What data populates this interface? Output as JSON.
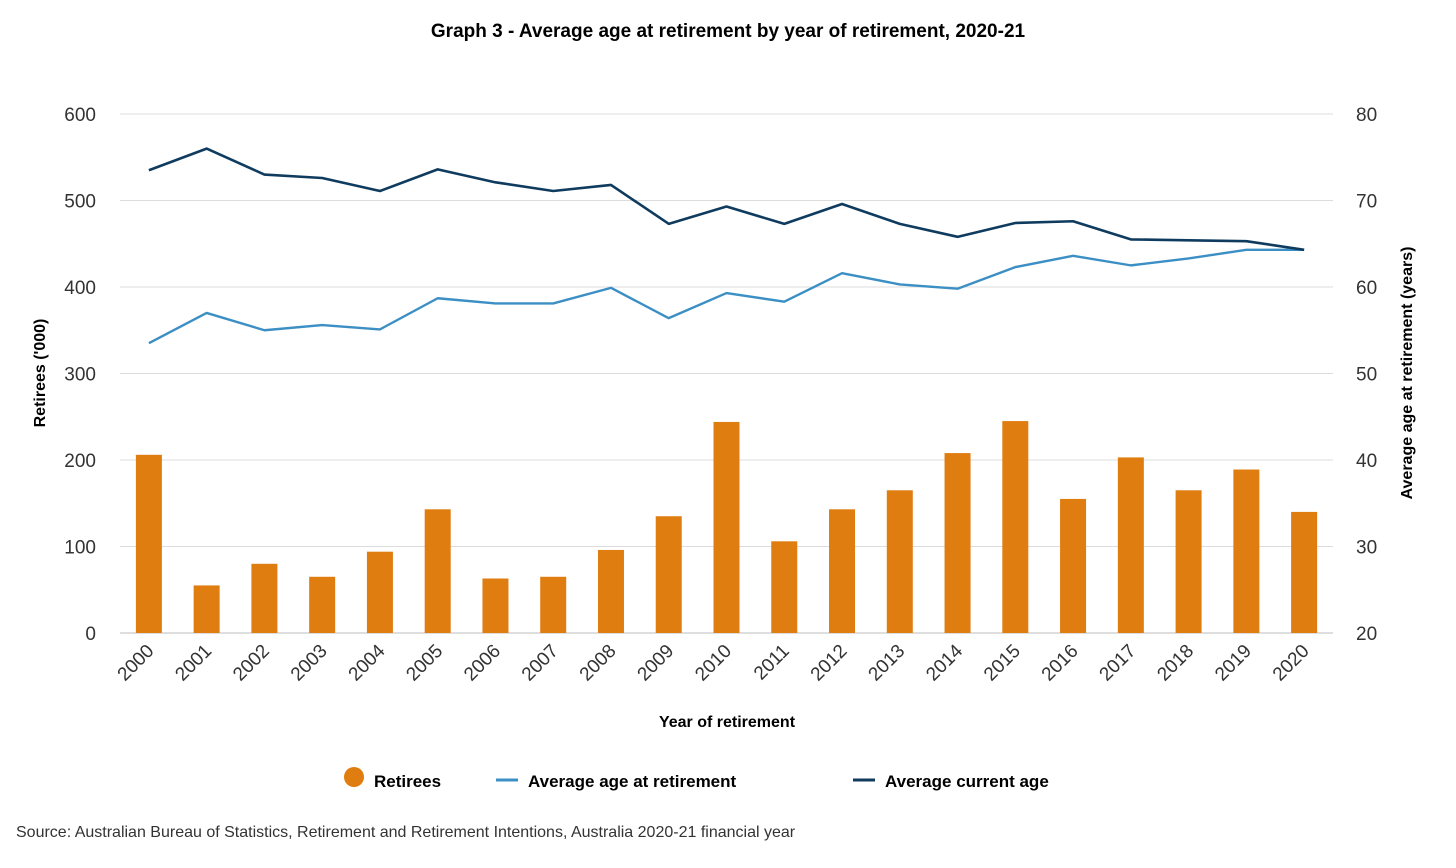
{
  "chart_data": {
    "type": "bar",
    "title": "Graph 3 - Average age at retirement by year of retirement, 2020-21",
    "xlabel": "Year of retirement",
    "ylabel": "Retirees ('000)",
    "y2label": "Average age at retirement (years)",
    "ylim": [
      0,
      600
    ],
    "y2lim": [
      20,
      80
    ],
    "yticks": [
      "0",
      "100",
      "200",
      "300",
      "400",
      "500",
      "600"
    ],
    "y2ticks": [
      "20",
      "30",
      "40",
      "50",
      "60",
      "70",
      "80"
    ],
    "grid": true,
    "legend_position": "bottom",
    "categories": [
      "2000",
      "2001",
      "2002",
      "2003",
      "2004",
      "2005",
      "2006",
      "2007",
      "2008",
      "2009",
      "2010",
      "2011",
      "2012",
      "2013",
      "2014",
      "2015",
      "2016",
      "2017",
      "2018",
      "2019",
      "2020"
    ],
    "series": [
      {
        "name": "Retirees",
        "type": "bar",
        "axis": "left",
        "color": "#E07D10",
        "values": [
          206,
          55,
          80,
          65,
          94,
          143,
          63,
          65,
          96,
          135,
          244,
          106,
          143,
          165,
          208,
          245,
          155,
          203,
          165,
          189,
          140
        ]
      },
      {
        "name": "Average age at retirement",
        "type": "line",
        "axis": "right",
        "color": "#3B8FC4",
        "values": [
          53.5,
          57,
          55,
          55.6,
          55.1,
          58.7,
          58.1,
          58.1,
          59.9,
          56.4,
          59.3,
          58.3,
          61.6,
          60.3,
          59.8,
          62.3,
          63.6,
          62.5,
          63.3,
          64.3,
          64.3
        ]
      },
      {
        "name": "Average current age",
        "type": "line",
        "axis": "right",
        "color": "#0F3B5F",
        "values": [
          73.5,
          76,
          73,
          72.6,
          71.1,
          73.6,
          72.1,
          71.1,
          71.8,
          67.3,
          69.3,
          67.3,
          69.6,
          67.3,
          65.8,
          67.4,
          67.6,
          65.5,
          65.4,
          65.3,
          64.3
        ]
      }
    ]
  },
  "source": "Source: Australian Bureau of Statistics, Retirement and Retirement Intentions, Australia 2020-21 financial year"
}
